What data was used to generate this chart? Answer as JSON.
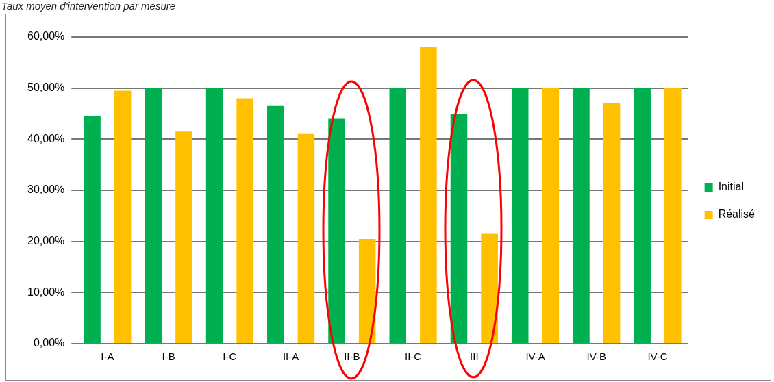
{
  "chart_data": {
    "type": "bar",
    "title": "Taux moyen d'intervention par mesure",
    "categories": [
      "I-A",
      "I-B",
      "I-C",
      "II-A",
      "II-B",
      "II-C",
      "III",
      "IV-A",
      "IV-B",
      "IV-C"
    ],
    "series": [
      {
        "name": "Initial",
        "color": "#00b050",
        "values": [
          44.5,
          50,
          50,
          46.5,
          44,
          50,
          45,
          50,
          50,
          50
        ]
      },
      {
        "name": "Réalisé",
        "color": "#ffc000",
        "values": [
          49.5,
          41.5,
          48,
          41,
          20.5,
          58,
          21.5,
          50,
          47,
          50
        ]
      }
    ],
    "ylim": [
      0,
      60
    ],
    "yticks": [
      {
        "value": 0,
        "label": "0,00%"
      },
      {
        "value": 10,
        "label": "10,00%"
      },
      {
        "value": 20,
        "label": "20,00%"
      },
      {
        "value": 30,
        "label": "30,00%"
      },
      {
        "value": 40,
        "label": "40,00%"
      },
      {
        "value": 50,
        "label": "50,00%"
      },
      {
        "value": 60,
        "label": "60,00%"
      }
    ],
    "grid": "y",
    "legend": "right"
  }
}
